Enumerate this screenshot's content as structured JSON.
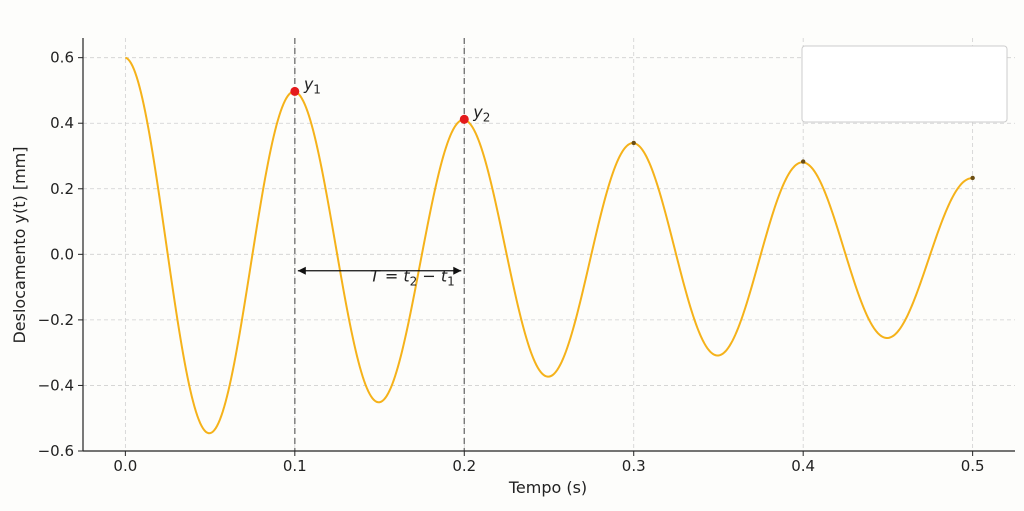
{
  "chart_data": {
    "type": "line",
    "title": "",
    "xlabel": "Tempo (s)",
    "ylabel": "Deslocamento y(t) [mm]",
    "xlim": [
      -0.025,
      0.525
    ],
    "ylim": [
      -0.6,
      0.66
    ],
    "grid": true,
    "legend": "top-right (empty box)",
    "xticks": [
      "0.0",
      "0.1",
      "0.2",
      "0.3",
      "0.4",
      "0.5"
    ],
    "yticks": [
      "0.6",
      "0.4",
      "0.2",
      "0.0",
      "−0.2",
      "−0.4",
      "−0.6"
    ],
    "xtick_values": [
      0.0,
      0.1,
      0.2,
      0.3,
      0.4,
      0.5
    ],
    "ytick_values": [
      0.6,
      0.4,
      0.2,
      0.0,
      -0.2,
      -0.4,
      -0.6
    ],
    "series": [
      {
        "color": "#f5b21a",
        "model": "damped cosine",
        "amplitude": 0.6,
        "period": 0.1,
        "decay_rate": 1.9,
        "t_range": [
          0,
          0.5
        ]
      }
    ],
    "peak_markers": [
      {
        "x": 0.3,
        "y": 0.34
      },
      {
        "x": 0.4,
        "y": 0.283
      },
      {
        "x": 0.5,
        "y": 0.233
      }
    ],
    "highlight_points": [
      {
        "x": 0.1,
        "y": 0.497,
        "label": "y",
        "sub": "1",
        "color": "#e41a1c"
      },
      {
        "x": 0.2,
        "y": 0.412,
        "label": "y",
        "sub": "2",
        "color": "#e41a1c"
      }
    ],
    "vlines": [
      0.1,
      0.2
    ],
    "period_arrow": {
      "x_start": 0.1,
      "x_end": 0.2,
      "y": -0.05,
      "label_T": "T",
      "label_eq": " = ",
      "t_main": "t",
      "sub2": "2",
      "minus": " − ",
      "sub1": "1"
    }
  }
}
